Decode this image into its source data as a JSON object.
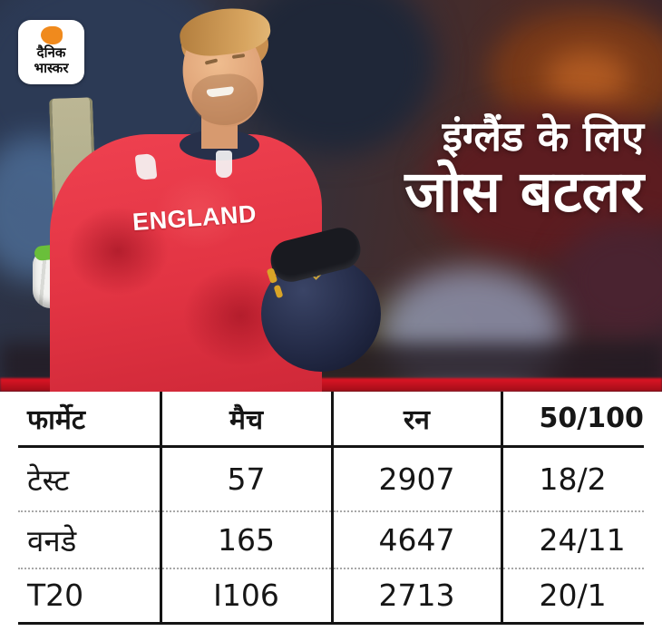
{
  "brand": {
    "logo_line1": "दैनिक",
    "logo_line2": "भास्कर"
  },
  "headline": {
    "line1": "इंग्लैंड के लिए",
    "line2": "जोस बटलर"
  },
  "photo": {
    "jersey_text": "ENGLAND"
  },
  "colors": {
    "jersey_red": "#e23443",
    "band_red": "#c41324",
    "logo_orange": "#f08a1d",
    "table_line": "#141414",
    "dotted_line": "#a8a8a8"
  },
  "chart_data": {
    "type": "table",
    "title": "इंग्लैंड के लिए जोस बटलर",
    "columns": [
      "फार्मेट",
      "मैच",
      "रन",
      "50/100"
    ],
    "rows": [
      [
        "टेस्ट",
        "57",
        "2907",
        "18/2"
      ],
      [
        "वनडे",
        "165",
        "4647",
        "24/11"
      ],
      [
        "T20",
        "I106",
        "2713",
        "20/1"
      ]
    ]
  }
}
